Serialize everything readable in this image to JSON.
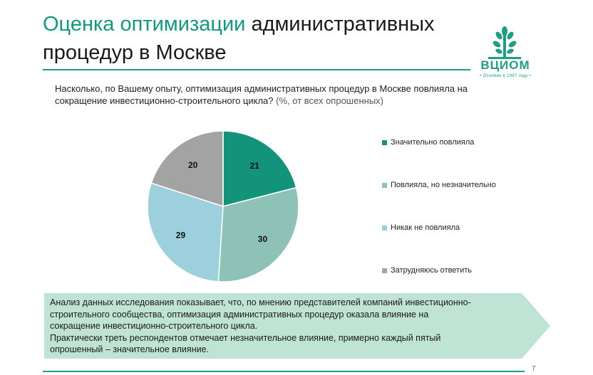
{
  "header": {
    "title_accent": "Оценка оптимизации",
    "title_rest": " административных процедур в Москве",
    "logo_name": "ВЦИОМ",
    "logo_tagline": "• Основан в 1987 году •"
  },
  "question": {
    "text": "Насколько, по Вашему опыту, оптимизация административных процедур в Москве повлияла на сокращение инвестиционно-строительного цикла?",
    "note": " (%, от всех опрошенных)"
  },
  "chart_data": {
    "type": "pie",
    "start_angle_deg": 0,
    "direction": "clockwise",
    "legend_position": "right",
    "labels": [
      "Значительно повлияла",
      "Повлияла, но незначительно",
      "Никак не повлияла",
      "Затрудняюсь ответить"
    ],
    "values": [
      21,
      30,
      29,
      20
    ],
    "colors": [
      "#12937a",
      "#8fc2b6",
      "#9cd0dc",
      "#a3a3a3"
    ]
  },
  "callout": {
    "lines": [
      "Анализ данных исследования показывает, что, по мнению представителей компаний инвестиционно-",
      "строительного сообщества, оптимизация административных процедур оказала влияние на",
      "сокращение инвестиционно-строительного цикла.",
      "Практически треть респондентов отмечает незначительное влияние, примерно каждый пятый",
      "опрошенный – значительное влияние."
    ],
    "color": "#bfe3d4"
  },
  "page_number": "7"
}
